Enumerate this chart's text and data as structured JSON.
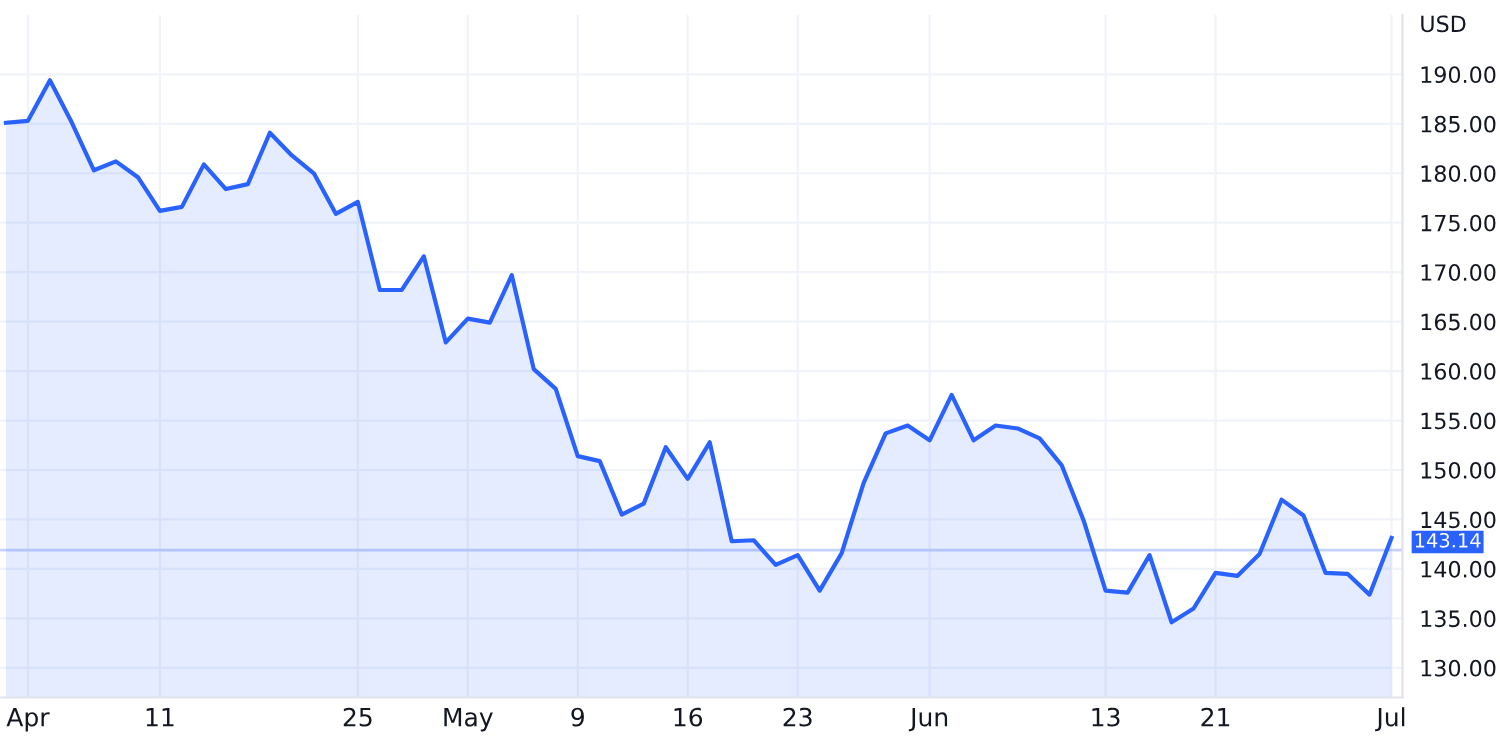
{
  "chart_data": {
    "type": "area",
    "ylabel": "USD",
    "categories": [
      null,
      "Apr",
      null,
      null,
      null,
      null,
      null,
      "11",
      null,
      null,
      null,
      null,
      null,
      null,
      null,
      null,
      "25",
      null,
      null,
      null,
      null,
      "May",
      null,
      null,
      null,
      null,
      "9",
      null,
      null,
      null,
      null,
      "16",
      null,
      null,
      null,
      null,
      "23",
      null,
      null,
      null,
      null,
      null,
      "Jun",
      null,
      null,
      null,
      null,
      null,
      null,
      null,
      "13",
      null,
      null,
      null,
      null,
      "21",
      null,
      null,
      null,
      null,
      null,
      null,
      null,
      "Jul"
    ],
    "series": [
      {
        "color": "#2962ff",
        "values": [
          185.1,
          185.3,
          189.4,
          185.1,
          180.3,
          181.2,
          179.6,
          176.2,
          176.6,
          180.9,
          178.4,
          178.9,
          184.1,
          181.8,
          180.0,
          175.9,
          177.1,
          168.2,
          168.2,
          171.6,
          162.9,
          165.3,
          164.9,
          169.7,
          160.2,
          158.2,
          151.4,
          150.9,
          145.5,
          146.6,
          152.3,
          149.1,
          152.8,
          142.8,
          142.9,
          140.4,
          141.4,
          137.8,
          141.6,
          148.7,
          153.7,
          154.5,
          153.0,
          157.6,
          153.0,
          154.5,
          154.2,
          153.2,
          150.5,
          144.9,
          137.8,
          137.6,
          141.4,
          134.6,
          136.0,
          139.6,
          139.3,
          141.5,
          147.0,
          145.4,
          139.6,
          139.5,
          137.4,
          143.14
        ]
      }
    ],
    "ylim": [
      127,
      196
    ],
    "yticks": [
      {
        "value": 130,
        "label": "130.00"
      },
      {
        "value": 135,
        "label": "135.00"
      },
      {
        "value": 140,
        "label": "140.00"
      },
      {
        "value": 145,
        "label": "145.00"
      },
      {
        "value": 150,
        "label": "150.00"
      },
      {
        "value": 155,
        "label": "155.00"
      },
      {
        "value": 160,
        "label": "160.00"
      },
      {
        "value": 165,
        "label": "165.00"
      },
      {
        "value": 170,
        "label": "170.00"
      },
      {
        "value": 175,
        "label": "175.00"
      },
      {
        "value": 180,
        "label": "180.00"
      },
      {
        "value": 185,
        "label": "185.00"
      },
      {
        "value": 190,
        "label": "190.00"
      }
    ],
    "ref_lines": [
      {
        "axis": "y",
        "value": 141.9,
        "color": "#c6d4fb"
      }
    ],
    "annotations": [
      "143.14"
    ],
    "grid": true,
    "marker": "none",
    "line_style": "solid",
    "legend": false
  }
}
